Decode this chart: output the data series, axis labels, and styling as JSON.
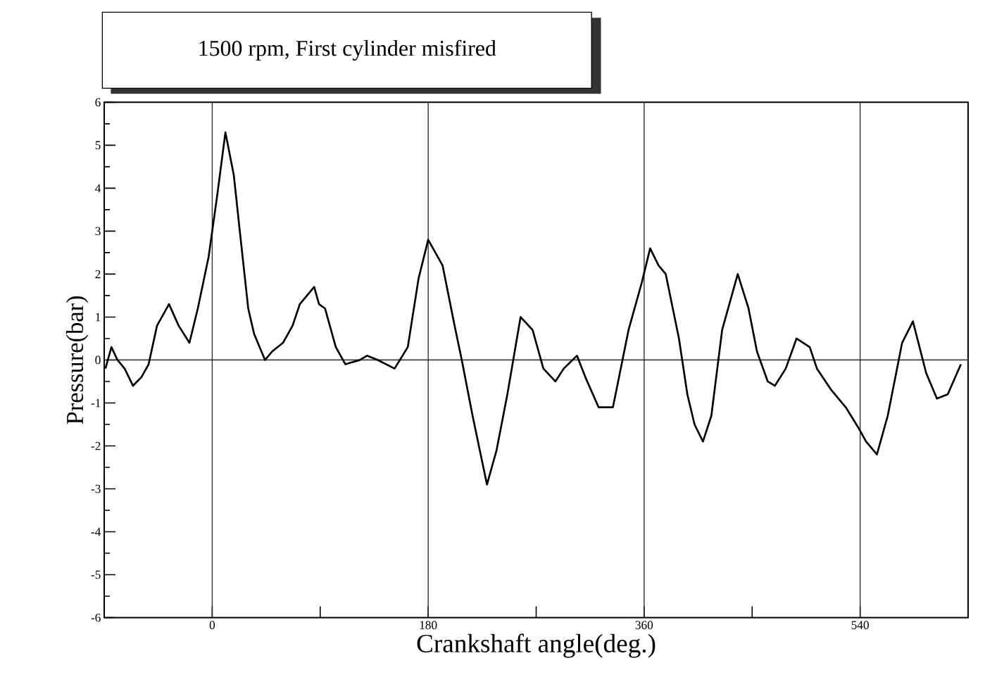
{
  "chart_data": {
    "type": "line",
    "title": "1500 rpm, First cylinder misfired",
    "xlabel": "Crankshaft angle(deg.)",
    "ylabel": "Pressure(bar)",
    "xlim": [
      -90,
      630
    ],
    "ylim": [
      -6,
      6
    ],
    "xticks": [
      0,
      {
        "value": 90,
        "label": null
      },
      180,
      {
        "value": 270,
        "label": null
      },
      360,
      {
        "value": 450,
        "label": null
      },
      540
    ],
    "yticks": [
      -6,
      -5,
      -4,
      -3,
      -2,
      -1,
      0,
      1,
      2,
      3,
      4,
      5,
      6
    ],
    "ref_lines": [
      {
        "axis": "y",
        "value": 0
      },
      {
        "axis": "x",
        "value": 0
      },
      {
        "axis": "x",
        "value": 180
      },
      {
        "axis": "x",
        "value": 360
      },
      {
        "axis": "x",
        "value": 540
      }
    ],
    "marker": "none",
    "line_style": "solid",
    "series": [
      {
        "color": "#000000",
        "x": [
          -89,
          -84,
          -79,
          -73,
          -66,
          -59,
          -53,
          -46,
          -36,
          -28,
          -19,
          -12,
          -3,
          4,
          11,
          18,
          23,
          30,
          35,
          44,
          50,
          59,
          67,
          73,
          85,
          89,
          94,
          103,
          111,
          123,
          129,
          138,
          152,
          163,
          172,
          180,
          192,
          202,
          208,
          217,
          229,
          237,
          246,
          257,
          267,
          276,
          286,
          293,
          304,
          311,
          322,
          334,
          347,
          358,
          365,
          372,
          378,
          389,
          396,
          402,
          409,
          416,
          425,
          438,
          447,
          454,
          463,
          469,
          478,
          487,
          498,
          504,
          516,
          528,
          539,
          545,
          554,
          563,
          575,
          584,
          595,
          604,
          613,
          624
        ],
        "values": [
          -0.2,
          0.3,
          0.0,
          -0.2,
          -0.6,
          -0.4,
          -0.1,
          0.8,
          1.3,
          0.8,
          0.4,
          1.2,
          2.4,
          3.8,
          5.3,
          4.3,
          3.0,
          1.2,
          0.6,
          0.0,
          0.2,
          0.4,
          0.8,
          1.3,
          1.7,
          1.3,
          1.2,
          0.3,
          -0.1,
          0.0,
          0.1,
          0.0,
          -0.2,
          0.3,
          1.9,
          2.8,
          2.2,
          0.8,
          0.0,
          -1.3,
          -2.9,
          -2.1,
          -0.8,
          1.0,
          0.7,
          -0.2,
          -0.5,
          -0.2,
          0.1,
          -0.4,
          -1.1,
          -1.1,
          0.7,
          1.8,
          2.6,
          2.2,
          2.0,
          0.5,
          -0.8,
          -1.5,
          -1.9,
          -1.3,
          0.7,
          2.0,
          1.2,
          0.2,
          -0.5,
          -0.6,
          -0.2,
          0.5,
          0.3,
          -0.2,
          -0.7,
          -1.1,
          -1.6,
          -1.9,
          -2.2,
          -1.3,
          0.4,
          0.9,
          -0.3,
          -0.9,
          -0.8,
          -0.1
        ]
      }
    ]
  }
}
